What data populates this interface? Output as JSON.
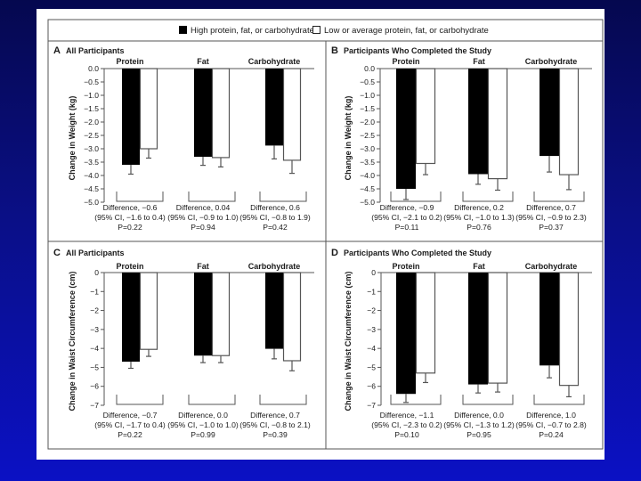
{
  "legend": {
    "high_label": "High protein, fat, or carbohydrate",
    "low_label": "Low or average protein, fat, or carbohydrate",
    "high_color": "#000000",
    "low_color": "#ffffff"
  },
  "chart_data": [
    {
      "type": "bar",
      "panel": "A",
      "title": "All Participants",
      "ylabel": "Change in Weight (kg)",
      "ylim": [
        -5.0,
        0.0
      ],
      "yticks": [
        "0.0",
        "-0.5",
        "-1.0",
        "-1.5",
        "-2.0",
        "-2.5",
        "-3.0",
        "-3.5",
        "-4.0",
        "-4.5",
        "-5.0"
      ],
      "ytick_values": [
        0,
        -0.5,
        -1.0,
        -1.5,
        -2.0,
        -2.5,
        -3.0,
        -3.5,
        -4.0,
        -4.5,
        -5.0
      ],
      "categories": [
        "Protein",
        "Fat",
        "Carbohydrate"
      ],
      "series": [
        {
          "name": "High protein, fat, or carbohydrate",
          "values": [
            -3.6,
            -3.3,
            -2.88
          ],
          "error_low": [
            -3.95,
            -3.62,
            -3.38
          ]
        },
        {
          "name": "Low or average protein, fat, or carbohydrate",
          "values": [
            -3.0,
            -3.33,
            -3.43
          ],
          "error_low": [
            -3.35,
            -3.68,
            -3.92
          ]
        }
      ],
      "annotations": [
        {
          "difference": "Difference, −0.6",
          "ci": "(95% CI, −1.6 to 0.4)",
          "p": "P=0.22"
        },
        {
          "difference": "Difference, 0.04",
          "ci": "(95% CI, −0.9 to 1.0)",
          "p": "P=0.94"
        },
        {
          "difference": "Difference, 0.6",
          "ci": "(95% CI, −0.8 to 1.9)",
          "p": "P=0.42"
        }
      ]
    },
    {
      "type": "bar",
      "panel": "B",
      "title": "Participants Who Completed the Study",
      "ylabel": "Change in Weight (kg)",
      "ylim": [
        -5.0,
        0.0
      ],
      "yticks": [
        "0.0",
        "-0.5",
        "-1.0",
        "-1.5",
        "-2.0",
        "-2.5",
        "-3.0",
        "-3.5",
        "-4.0",
        "-4.5",
        "-5.0"
      ],
      "ytick_values": [
        0,
        -0.5,
        -1.0,
        -1.5,
        -2.0,
        -2.5,
        -3.0,
        -3.5,
        -4.0,
        -4.5,
        -5.0
      ],
      "categories": [
        "Protein",
        "Fat",
        "Carbohydrate"
      ],
      "series": [
        {
          "name": "High protein, fat, or carbohydrate",
          "values": [
            -4.5,
            -3.95,
            -3.27
          ],
          "error_low": [
            -4.9,
            -4.33,
            -3.87
          ]
        },
        {
          "name": "Low or average protein, fat, or carbohydrate",
          "values": [
            -3.55,
            -4.12,
            -3.97
          ],
          "error_low": [
            -3.97,
            -4.55,
            -4.53
          ]
        }
      ],
      "annotations": [
        {
          "difference": "Difference, −0.9",
          "ci": "(95% CI, −2.1 to 0.2)",
          "p": "P=0.11"
        },
        {
          "difference": "Difference, 0.2",
          "ci": "(95% CI, −1.0 to 1.3)",
          "p": "P=0.76"
        },
        {
          "difference": "Difference, 0.7",
          "ci": "(95% CI, −0.9 to 2.3)",
          "p": "P=0.37"
        }
      ]
    },
    {
      "type": "bar",
      "panel": "C",
      "title": "All Participants",
      "ylabel": "Change in Waist Circumference (cm)",
      "ylim": [
        -7,
        0
      ],
      "yticks": [
        "0",
        "-1",
        "-2",
        "-3",
        "-4",
        "-5",
        "-6",
        "-7"
      ],
      "ytick_values": [
        0,
        -1,
        -2,
        -3,
        -4,
        -5,
        -6,
        -7
      ],
      "categories": [
        "Protein",
        "Fat",
        "Carbohydrate"
      ],
      "series": [
        {
          "name": "High protein, fat, or carbohydrate",
          "values": [
            -4.7,
            -4.38,
            -4.02
          ],
          "error_low": [
            -5.05,
            -4.75,
            -4.55
          ]
        },
        {
          "name": "Low or average protein, fat, or carbohydrate",
          "values": [
            -4.05,
            -4.38,
            -4.65
          ],
          "error_low": [
            -4.42,
            -4.75,
            -5.18
          ]
        }
      ],
      "annotations": [
        {
          "difference": "Difference, −0.7",
          "ci": "(95% CI, −1.7 to 0.4)",
          "p": "P=0.22"
        },
        {
          "difference": "Difference, 0.0",
          "ci": "(95% CI, −1.0 to 1.0)",
          "p": "P=0.99"
        },
        {
          "difference": "Difference, 0.7",
          "ci": "(95% CI, −0.8 to 2.1)",
          "p": "P=0.39"
        }
      ]
    },
    {
      "type": "bar",
      "panel": "D",
      "title": "Participants Who Completed the Study",
      "ylabel": "Change in Waist Circumference (cm)",
      "ylim": [
        -7,
        0
      ],
      "yticks": [
        "0",
        "-1",
        "-2",
        "-3",
        "-4",
        "-5",
        "-6",
        "-7"
      ],
      "ytick_values": [
        0,
        -1,
        -2,
        -3,
        -4,
        -5,
        -6,
        -7
      ],
      "categories": [
        "Protein",
        "Fat",
        "Carbohydrate"
      ],
      "series": [
        {
          "name": "High protein, fat, or carbohydrate",
          "values": [
            -6.4,
            -5.9,
            -4.9
          ],
          "error_low": [
            -6.85,
            -6.35,
            -5.55
          ]
        },
        {
          "name": "Low or average protein, fat, or carbohydrate",
          "values": [
            -5.3,
            -5.83,
            -5.95
          ],
          "error_low": [
            -5.8,
            -6.3,
            -6.55
          ]
        }
      ],
      "annotations": [
        {
          "difference": "Difference, −1.1",
          "ci": "(95% CI, −2.3 to 0.2)",
          "p": "P=0.10"
        },
        {
          "difference": "Difference, 0.0",
          "ci": "(95% CI, −1.3 to 1.2)",
          "p": "P=0.95"
        },
        {
          "difference": "Difference, 1.0",
          "ci": "(95% CI, −0.7 to 2.8)",
          "p": "P=0.24"
        }
      ]
    }
  ]
}
